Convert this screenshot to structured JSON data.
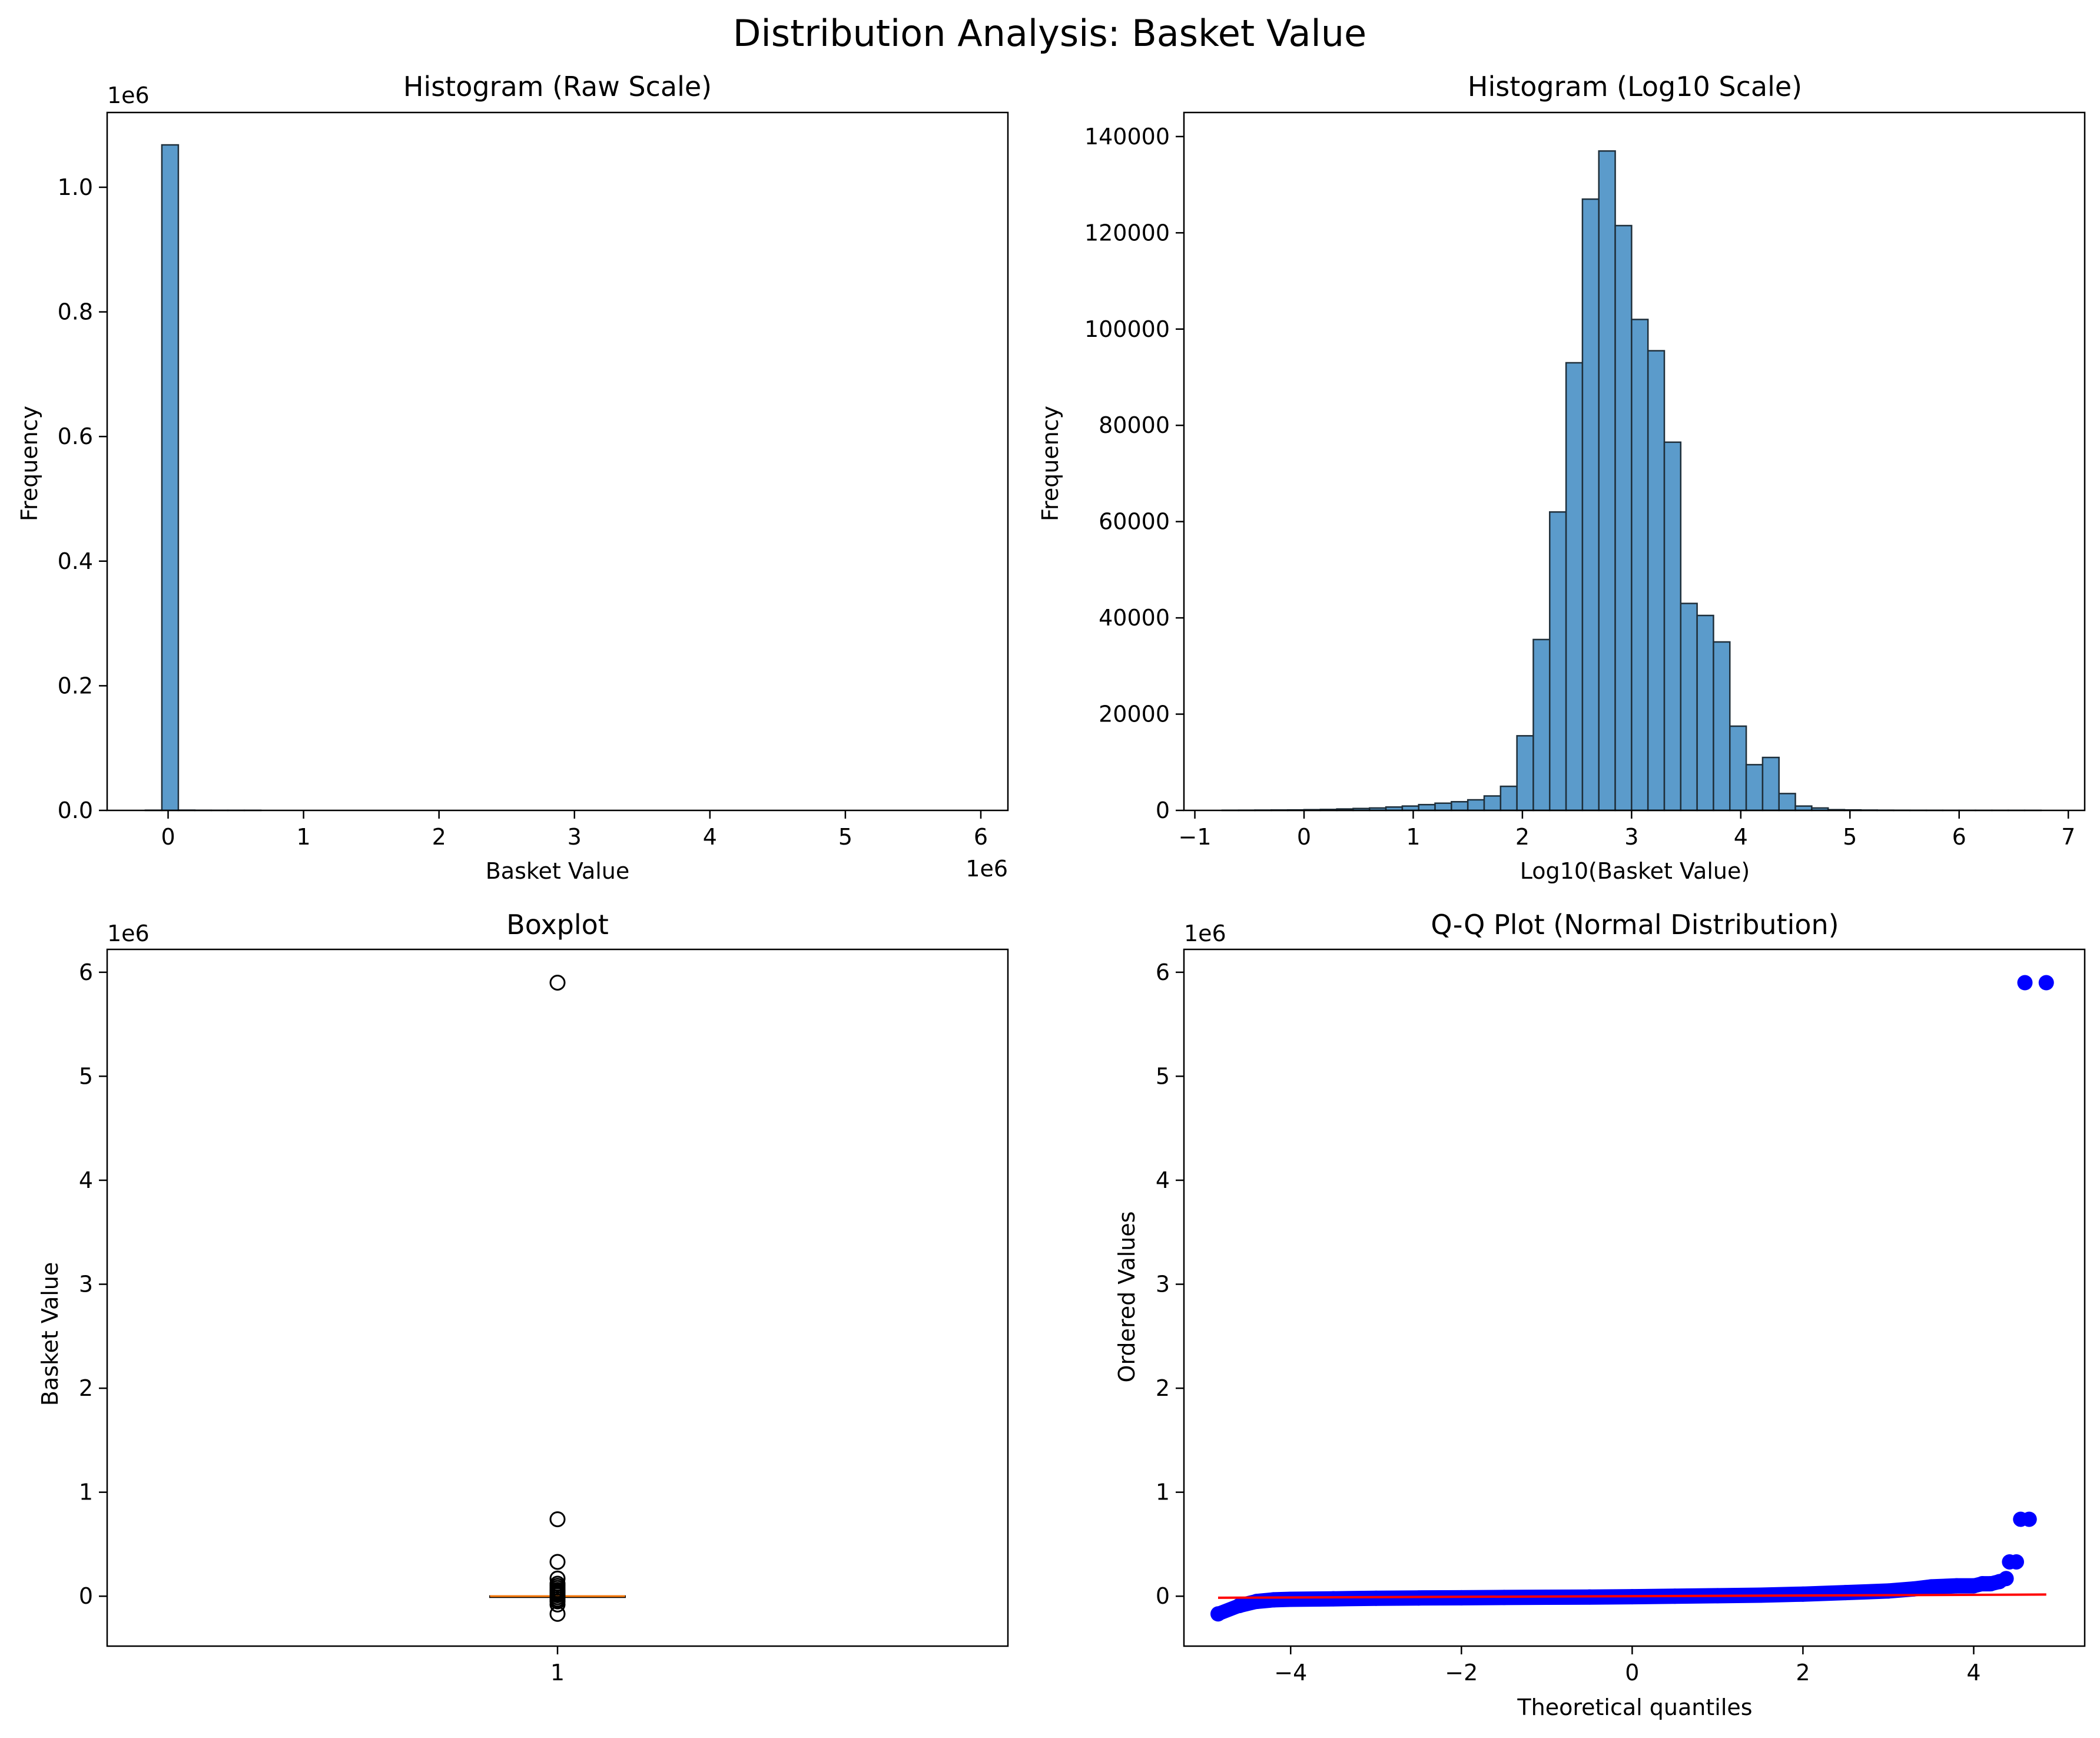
{
  "figure": {
    "suptitle": "Distribution Analysis: Basket Value"
  },
  "colors": {
    "bar": "#5b9bcb",
    "bar_edge": "#1f2f3a",
    "box_median": "#ff7f0e",
    "qq_points": "#0000ff",
    "qq_line": "#ff0000",
    "outlier_edge": "#000000"
  },
  "chart_data": [
    {
      "type": "bar",
      "title": "Histogram (Raw Scale)",
      "xlabel": "Basket Value",
      "ylabel": "Frequency",
      "x_multiplier": "1e6",
      "y_multiplier": "1e6",
      "xlim": [
        -0.45,
        6.2
      ],
      "ylim": [
        0,
        1.12
      ],
      "x_ticks": [
        0,
        1,
        2,
        3,
        4,
        5,
        6
      ],
      "x_tick_labels": [
        "0",
        "1",
        "2",
        "3",
        "4",
        "5",
        "6"
      ],
      "y_ticks": [
        0,
        0.2,
        0.4,
        0.6,
        0.8,
        1.0
      ],
      "y_tick_labels": [
        "0.0",
        "0.2",
        "0.4",
        "0.6",
        "0.8",
        "1.0"
      ],
      "bin_start": -0.168,
      "bin_width": 0.1218,
      "values": [
        0.0003,
        1.068,
        0.0004,
        0.0002,
        0.0001,
        0.0001,
        0.0001,
        0,
        0,
        0,
        0,
        0,
        0,
        0,
        0,
        0,
        0,
        0,
        0,
        0,
        0,
        0,
        0,
        0,
        0,
        0,
        0,
        0,
        0,
        0,
        0,
        0,
        0,
        0,
        0,
        0,
        0,
        0,
        0,
        0,
        0,
        0,
        0,
        0,
        0,
        0,
        0,
        0,
        0,
        0
      ],
      "grid": false
    },
    {
      "type": "bar",
      "title": "Histogram (Log10 Scale)",
      "xlabel": "Log10(Basket Value)",
      "ylabel": "Frequency",
      "xlim": [
        -1.1,
        7.15
      ],
      "ylim": [
        0,
        145000
      ],
      "x_ticks": [
        -1,
        0,
        1,
        2,
        3,
        4,
        5,
        6,
        7
      ],
      "x_tick_labels": [
        "−1",
        "0",
        "1",
        "2",
        "3",
        "4",
        "5",
        "6",
        "7"
      ],
      "y_ticks": [
        0,
        20000,
        40000,
        60000,
        80000,
        100000,
        120000,
        140000
      ],
      "y_tick_labels": [
        "0",
        "20000",
        "40000",
        "60000",
        "80000",
        "100000",
        "120000",
        "140000"
      ],
      "bin_start": -0.75,
      "bin_width": 0.15,
      "values": [
        30,
        40,
        60,
        80,
        100,
        150,
        200,
        300,
        400,
        500,
        700,
        900,
        1200,
        1500,
        1800,
        2200,
        3000,
        5000,
        15500,
        35500,
        62000,
        93000,
        127000,
        137000,
        121500,
        102000,
        95500,
        76500,
        43000,
        40500,
        35000,
        17500,
        9500,
        11000,
        3500,
        900,
        500,
        150,
        100,
        60,
        40,
        30,
        20,
        15,
        10,
        8,
        6,
        5,
        4,
        3
      ],
      "grid": false
    },
    {
      "type": "boxplot",
      "title": "Boxplot",
      "ylabel": "Basket Value",
      "y_multiplier": "1e6",
      "xlim": [
        0.5,
        1.5
      ],
      "ylim": [
        -0.48,
        6.22
      ],
      "x_ticks": [
        1
      ],
      "x_tick_labels": [
        "1"
      ],
      "y_ticks": [
        0,
        1,
        2,
        3,
        4,
        5,
        6
      ],
      "y_tick_labels": [
        "0",
        "1",
        "2",
        "3",
        "4",
        "5",
        "6"
      ],
      "box": {
        "position": 1,
        "q1": 0.0003,
        "median": 0.0007,
        "q3": 0.0015,
        "whisker_low": -0.002,
        "whisker_high": 0.0032
      },
      "outliers": [
        5.9,
        0.74,
        0.33,
        0.17,
        0.12,
        0.1,
        0.08,
        0.06,
        0.05,
        0.04,
        0.03,
        0.02,
        0.015,
        0.01,
        -0.01,
        -0.03,
        -0.05,
        -0.08,
        -0.17
      ],
      "grid": false
    },
    {
      "type": "scatter",
      "title": "Q-Q Plot (Normal Distribution)",
      "xlabel": "Theoretical quantiles",
      "ylabel": "Ordered Values",
      "y_multiplier": "1e6",
      "xlim": [
        -5.25,
        5.3
      ],
      "ylim": [
        -0.48,
        6.22
      ],
      "x_ticks": [
        -4,
        -2,
        0,
        2,
        4
      ],
      "x_tick_labels": [
        "−4",
        "−2",
        "0",
        "2",
        "4"
      ],
      "y_ticks": [
        0,
        1,
        2,
        3,
        4,
        5,
        6
      ],
      "y_tick_labels": [
        "0",
        "1",
        "2",
        "3",
        "4",
        "5",
        "6"
      ],
      "points": [
        [
          -4.85,
          -0.17
        ],
        [
          -4.6,
          -0.09
        ],
        [
          -4.4,
          -0.05
        ],
        [
          -4.2,
          -0.035
        ],
        [
          -4.0,
          -0.03
        ],
        [
          -3.5,
          -0.025
        ],
        [
          -3.0,
          -0.02
        ],
        [
          -2.5,
          -0.017
        ],
        [
          -2.0,
          -0.015
        ],
        [
          -1.5,
          -0.012
        ],
        [
          -1.0,
          -0.01
        ],
        [
          -0.5,
          -0.008
        ],
        [
          0.0,
          -0.005
        ],
        [
          0.5,
          0.0
        ],
        [
          1.0,
          0.005
        ],
        [
          1.5,
          0.01
        ],
        [
          2.0,
          0.02
        ],
        [
          2.5,
          0.035
        ],
        [
          3.0,
          0.05
        ],
        [
          3.3,
          0.07
        ],
        [
          3.5,
          0.09
        ],
        [
          3.8,
          0.1
        ],
        [
          4.0,
          0.1
        ],
        [
          4.1,
          0.12
        ],
        [
          4.2,
          0.12
        ],
        [
          4.3,
          0.14
        ],
        [
          4.38,
          0.17
        ],
        [
          4.42,
          0.33
        ],
        [
          4.5,
          0.33
        ],
        [
          4.55,
          0.74
        ],
        [
          4.65,
          0.74
        ],
        [
          4.6,
          5.9
        ],
        [
          4.85,
          5.9
        ]
      ],
      "fit_line": [
        [
          -4.85,
          -0.015
        ],
        [
          4.85,
          0.016
        ]
      ],
      "grid": false
    }
  ]
}
